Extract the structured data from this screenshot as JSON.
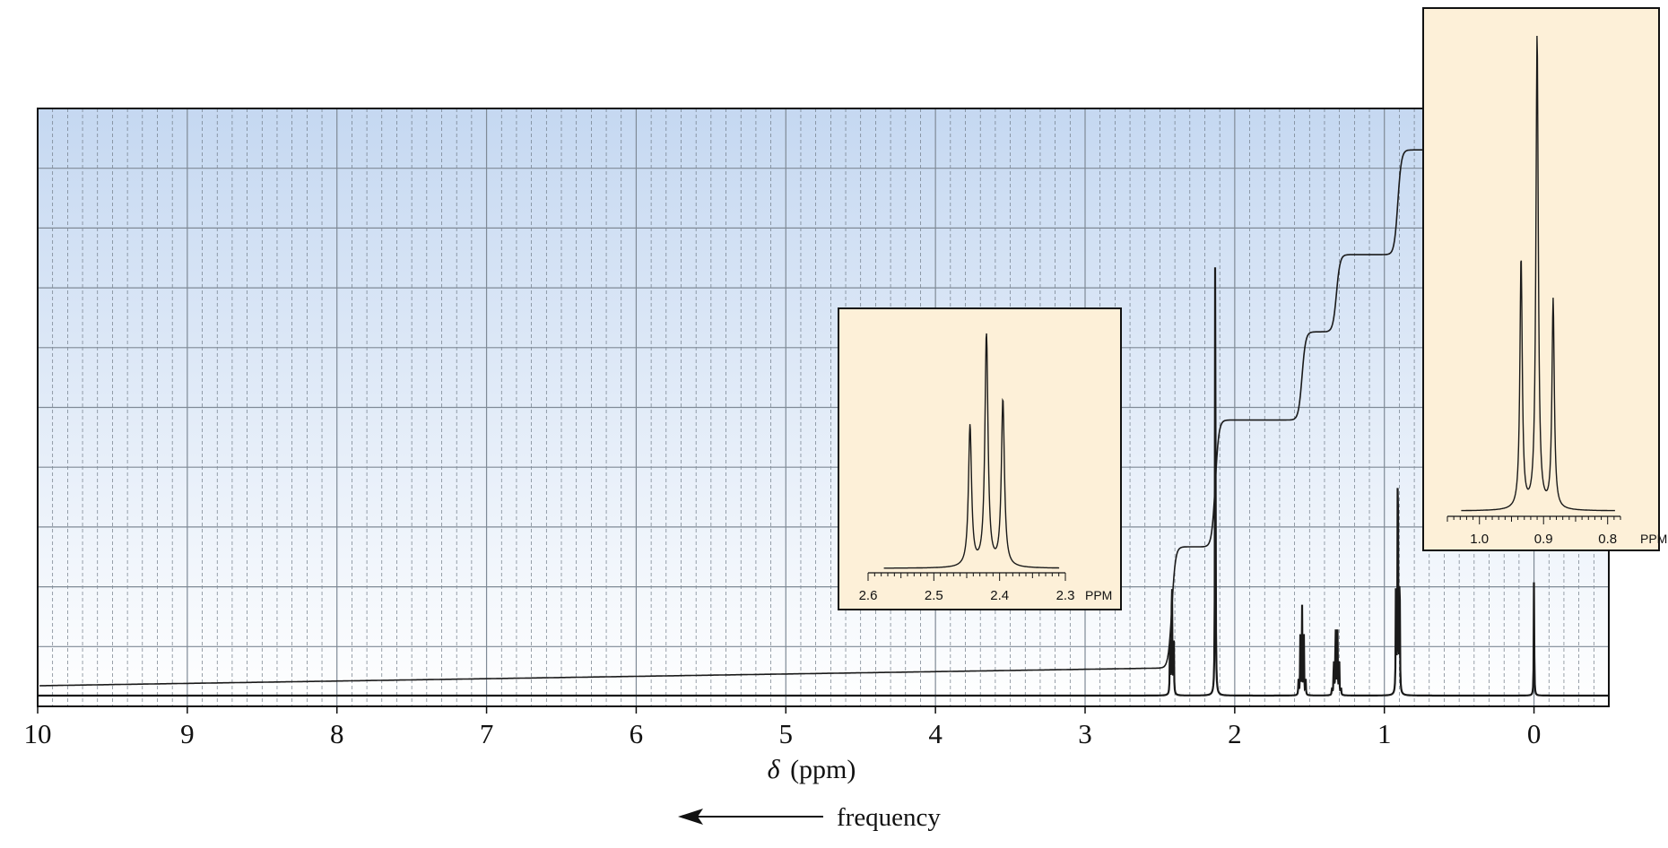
{
  "chart_data": [
    {
      "type": "line",
      "title": "",
      "xlabel_symbol": "δ",
      "xlabel_unit": "(ppm)",
      "direction_label": "frequency",
      "xlim": [
        10,
        -0.5
      ],
      "x_tick_labels": [
        "10",
        "9",
        "8",
        "7",
        "6",
        "5",
        "4",
        "3",
        "2",
        "1",
        "0"
      ],
      "x_ticks": [
        10,
        9,
        8,
        7,
        6,
        5,
        4,
        3,
        2,
        1,
        0
      ],
      "grid": true,
      "series": [
        {
          "peaks": [
            {
              "shift": 2.42,
              "height": 0.28,
              "multiplicity": 3
            },
            {
              "shift": 2.13,
              "height": 0.98,
              "multiplicity": 1
            },
            {
              "shift": 1.55,
              "height": 0.16,
              "multiplicity": 5
            },
            {
              "shift": 1.32,
              "height": 0.15,
              "multiplicity": 6
            },
            {
              "shift": 0.91,
              "height": 0.56,
              "multiplicity": 3
            },
            {
              "shift": 0.0,
              "height": 0.21,
              "multiplicity": 1
            }
          ]
        },
        {
          "integral_steps": [
            {
              "shift": 2.42,
              "level": 0.22
            },
            {
              "shift": 2.13,
              "level": 0.45
            },
            {
              "shift": 1.55,
              "level": 0.61
            },
            {
              "shift": 1.32,
              "level": 0.75
            },
            {
              "shift": 0.91,
              "level": 0.94
            }
          ]
        }
      ]
    },
    {
      "type": "line",
      "inset": "left",
      "xlim": [
        2.6,
        2.3
      ],
      "x_tick_labels": [
        "2.6",
        "2.5",
        "2.4",
        "2.3"
      ],
      "x_ticks": [
        2.6,
        2.5,
        2.4,
        2.3
      ],
      "unit_label": "PPM",
      "peaks": [
        {
          "shift": 2.445,
          "height": 0.6
        },
        {
          "shift": 2.42,
          "height": 1.0
        },
        {
          "shift": 2.395,
          "height": 0.71
        }
      ]
    },
    {
      "type": "line",
      "inset": "right",
      "xlim": [
        1.05,
        0.78
      ],
      "x_tick_labels": [
        "1.0",
        "0.9",
        "0.8"
      ],
      "x_ticks": [
        1.0,
        0.9,
        0.8
      ],
      "unit_label": "PPM",
      "peaks": [
        {
          "shift": 0.935,
          "height": 0.53
        },
        {
          "shift": 0.91,
          "height": 1.0
        },
        {
          "shift": 0.885,
          "height": 0.44
        }
      ]
    }
  ],
  "colors": {
    "plot_bg_top": "#c5d8f1",
    "plot_bg_bottom": "#ffffff",
    "inset_bg": "#fdf0d8",
    "major_grid": "#7f8a96",
    "minor_grid": "#6f7a86",
    "trace": "#1a1a1a"
  }
}
